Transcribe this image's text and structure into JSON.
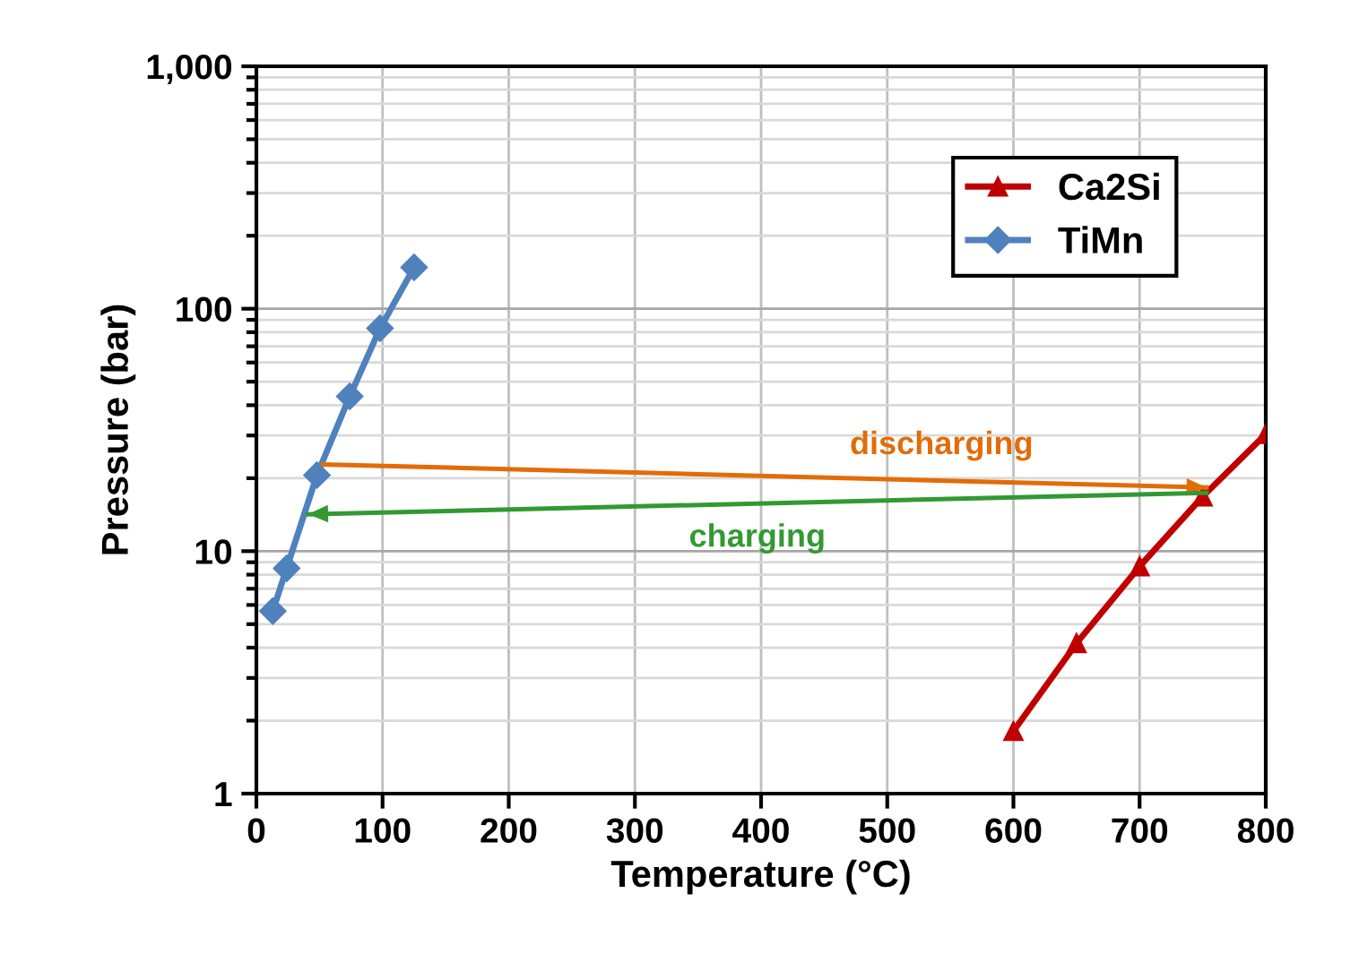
{
  "chart_data": {
    "type": "line",
    "xlabel": "Temperature (°C)",
    "ylabel": "Pressure (bar)",
    "log": "y",
    "xlim": [
      0,
      800
    ],
    "xticks": [
      0,
      100,
      200,
      300,
      400,
      500,
      600,
      700,
      800
    ],
    "ylim": [
      1,
      1000
    ],
    "yticks": [
      1,
      10,
      100,
      {
        "value": 1000,
        "label": "1,000"
      }
    ],
    "grid": true,
    "legend": "top right",
    "series": [
      {
        "name": "Ca2Si",
        "color": "#c00000",
        "marker": "triangle",
        "x": [
          600,
          650,
          700,
          750,
          800
        ],
        "values": [
          1.81,
          4.17,
          8.65,
          16.8,
          30.4
        ]
      },
      {
        "name": "TiMn",
        "color": "#4f81bd",
        "marker": "diamond",
        "x": [
          13,
          24,
          48,
          74,
          98,
          125
        ],
        "values": [
          5.66,
          8.5,
          20.6,
          43.5,
          83,
          148
        ]
      },
      {
        "type": "line",
        "marker": "none",
        "color": "#e36c09",
        "x": [
          53,
          753
        ],
        "values": [
          22.8,
          18.3
        ]
      },
      {
        "type": "line",
        "marker": "none",
        "color": "#339933",
        "x": [
          753,
          41
        ],
        "values": [
          17.4,
          14.2
        ]
      }
    ],
    "annotations": [
      "discharging",
      "charging"
    ]
  }
}
